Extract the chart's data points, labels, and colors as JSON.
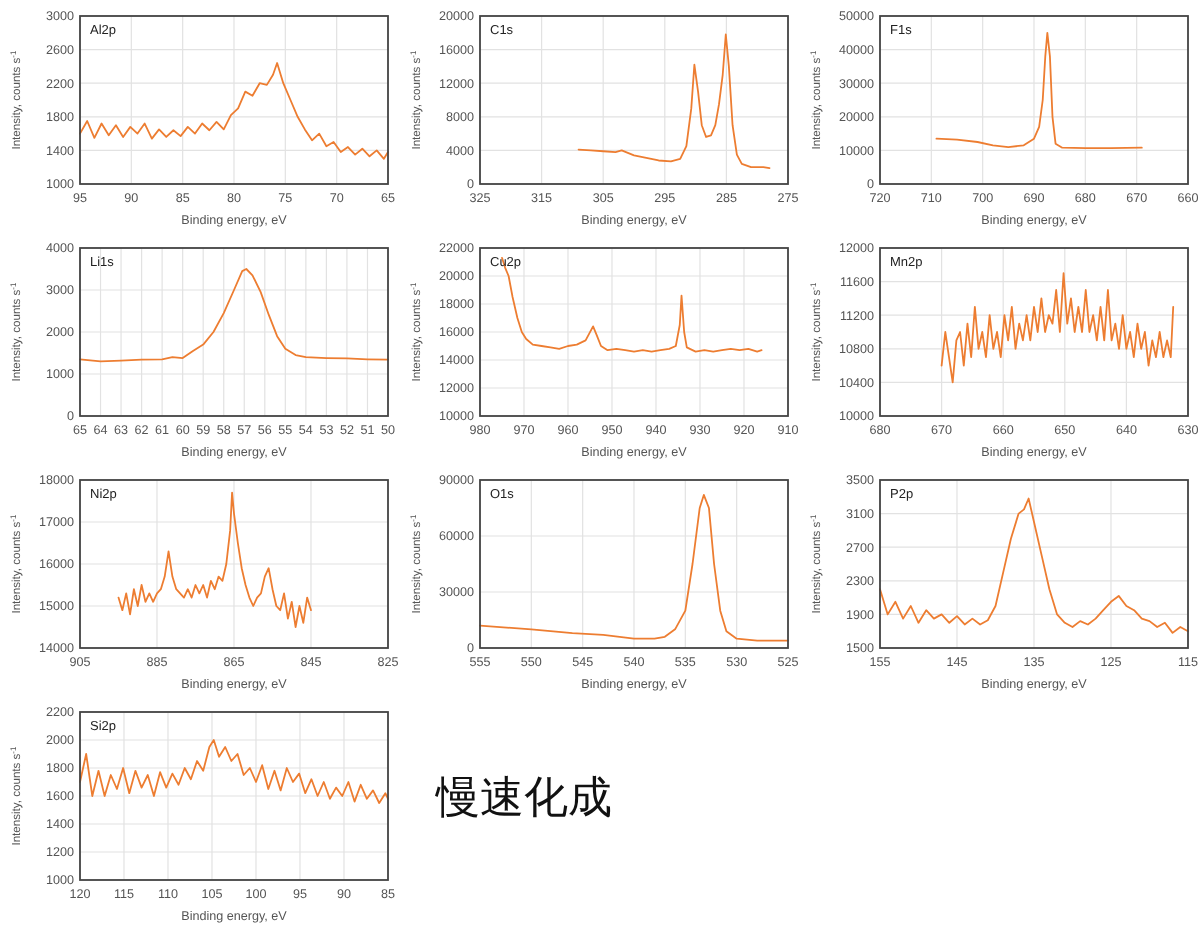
{
  "chart_data": [
    {
      "type": "line",
      "title": "Al2p",
      "xlabel": "Binding energy, eV",
      "ylabel": "Intensity, counts s$^{-1}$",
      "xlim": [
        95,
        65
      ],
      "xticks": [
        95,
        90,
        85,
        80,
        75,
        70,
        65
      ],
      "ylim": [
        1000,
        3000
      ],
      "yticks": [
        1000,
        1400,
        1800,
        2200,
        2600,
        3000
      ],
      "grid": true,
      "line_style": "solid",
      "marker": "none",
      "series": [
        {
          "color": "#ed7d31",
          "x": [
            95,
            94.3,
            93.6,
            92.9,
            92.2,
            91.5,
            90.8,
            90.1,
            89.4,
            88.7,
            88,
            87.3,
            86.6,
            85.9,
            85.2,
            84.5,
            83.8,
            83.1,
            82.4,
            81.7,
            81,
            80.3,
            79.6,
            78.9,
            78.2,
            77.5,
            76.8,
            76.2,
            75.8,
            75.2,
            74.5,
            73.8,
            73.1,
            72.4,
            71.7,
            71,
            70.3,
            69.6,
            68.9,
            68.2,
            67.5,
            66.8,
            66.1,
            65.4,
            65
          ],
          "values": [
            1600,
            1750,
            1550,
            1720,
            1580,
            1700,
            1560,
            1680,
            1600,
            1720,
            1540,
            1650,
            1560,
            1640,
            1570,
            1680,
            1600,
            1720,
            1640,
            1740,
            1650,
            1820,
            1900,
            2100,
            2050,
            2200,
            2180,
            2300,
            2440,
            2200,
            2000,
            1800,
            1650,
            1520,
            1600,
            1450,
            1500,
            1380,
            1440,
            1350,
            1420,
            1330,
            1400,
            1300,
            1380
          ]
        }
      ]
    },
    {
      "type": "line",
      "title": "C1s",
      "xlabel": "Binding energy, eV",
      "ylabel": "Intensity, counts s$^{-1}$",
      "xlim": [
        325,
        275
      ],
      "xticks": [
        325,
        315,
        305,
        295,
        285,
        275
      ],
      "ylim": [
        0,
        20000
      ],
      "yticks": [
        0,
        4000,
        8000,
        12000,
        16000,
        20000
      ],
      "grid": true,
      "line_style": "solid",
      "marker": "none",
      "series": [
        {
          "color": "#ed7d31",
          "x": [
            309,
            307,
            305,
            303,
            302,
            300,
            298,
            296,
            294,
            292.5,
            291.5,
            290.7,
            290.2,
            289.6,
            289,
            288.3,
            287.5,
            286.8,
            286.2,
            285.6,
            285.1,
            284.6,
            284,
            283.3,
            282.5,
            281,
            279,
            278
          ],
          "values": [
            4100,
            4000,
            3900,
            3800,
            4000,
            3400,
            3100,
            2800,
            2700,
            3000,
            4500,
            9000,
            14200,
            11000,
            7000,
            5600,
            5800,
            7000,
            9500,
            13000,
            17800,
            14000,
            7000,
            3500,
            2400,
            2000,
            2000,
            1900
          ]
        }
      ]
    },
    {
      "type": "line",
      "title": "F1s",
      "xlabel": "Binding energy, eV",
      "ylabel": "Intensity, counts s$^{-1}$",
      "xlim": [
        720,
        660
      ],
      "xticks": [
        720,
        710,
        700,
        690,
        680,
        670,
        660
      ],
      "ylim": [
        0,
        50000
      ],
      "yticks": [
        0,
        10000,
        20000,
        30000,
        40000,
        50000
      ],
      "grid": true,
      "line_style": "solid",
      "marker": "none",
      "series": [
        {
          "color": "#ed7d31",
          "x": [
            709,
            705,
            701,
            698,
            695,
            692,
            690,
            689,
            688.3,
            687.8,
            687.4,
            686.9,
            686.4,
            685.8,
            684.5,
            680,
            675,
            669
          ],
          "values": [
            13500,
            13200,
            12500,
            11500,
            11000,
            11500,
            13500,
            17000,
            25000,
            38000,
            45000,
            38000,
            20000,
            12000,
            10800,
            10700,
            10700,
            10800
          ]
        }
      ]
    },
    {
      "type": "line",
      "title": "Li1s",
      "xlabel": "Binding energy, eV",
      "ylabel": "Intensity, counts s$^{-1}$",
      "xlim": [
        65,
        50
      ],
      "xticks": [
        65,
        64,
        63,
        62,
        61,
        60,
        59,
        58,
        57,
        56,
        55,
        54,
        53,
        52,
        51,
        50
      ],
      "ylim": [
        0,
        4000
      ],
      "yticks": [
        0,
        1000,
        2000,
        3000,
        4000
      ],
      "grid": true,
      "line_style": "solid",
      "marker": "none",
      "series": [
        {
          "color": "#ed7d31",
          "x": [
            65,
            64,
            63,
            62,
            61,
            60.5,
            60,
            59.5,
            59,
            58.5,
            58,
            57.5,
            57.1,
            56.9,
            56.6,
            56.2,
            55.8,
            55.4,
            55,
            54.5,
            54,
            53,
            52,
            51,
            50
          ],
          "values": [
            1350,
            1300,
            1320,
            1340,
            1350,
            1400,
            1380,
            1550,
            1700,
            2000,
            2450,
            3000,
            3450,
            3500,
            3350,
            2950,
            2400,
            1900,
            1600,
            1450,
            1400,
            1380,
            1370,
            1350,
            1340
          ]
        }
      ]
    },
    {
      "type": "line",
      "title": "Cu2p",
      "xlabel": "Binding energy, eV",
      "ylabel": "Intensity, counts s$^{-1}$",
      "xlim": [
        980,
        910
      ],
      "xticks": [
        980,
        970,
        960,
        950,
        940,
        930,
        920,
        910
      ],
      "ylim": [
        10000,
        22000
      ],
      "yticks": [
        10000,
        12000,
        14000,
        16000,
        18000,
        20000,
        22000
      ],
      "grid": true,
      "line_style": "solid",
      "marker": "none",
      "series": [
        {
          "color": "#ed7d31",
          "x": [
            975,
            974.3,
            973.5,
            972.6,
            971.5,
            970.5,
            969.5,
            968,
            966,
            964,
            962,
            960,
            958,
            956,
            954.3,
            953.5,
            952.5,
            951,
            949,
            947,
            945,
            943,
            941,
            939,
            937,
            935.5,
            934.6,
            934.2,
            933.6,
            933,
            931,
            929,
            927,
            925,
            923,
            921,
            919,
            917,
            916
          ],
          "values": [
            21300,
            20600,
            20000,
            18500,
            17000,
            16000,
            15500,
            15100,
            15000,
            14900,
            14800,
            15000,
            15100,
            15400,
            16400,
            15800,
            15000,
            14700,
            14800,
            14700,
            14600,
            14700,
            14600,
            14700,
            14800,
            15000,
            16500,
            18600,
            16000,
            14900,
            14600,
            14700,
            14600,
            14700,
            14800,
            14700,
            14800,
            14600,
            14700
          ]
        }
      ]
    },
    {
      "type": "line",
      "title": "Mn2p",
      "xlabel": "Binding energy, eV",
      "ylabel": "Intensity, counts s$^{-1}$",
      "xlim": [
        680,
        630
      ],
      "xticks": [
        680,
        670,
        660,
        650,
        640,
        630
      ],
      "ylim": [
        10000,
        12000
      ],
      "yticks": [
        10000,
        10400,
        10800,
        11200,
        11600,
        12000
      ],
      "grid": true,
      "line_style": "solid",
      "marker": "none",
      "series": [
        {
          "color": "#ed7d31",
          "x": [
            670,
            669.4,
            668.8,
            668.2,
            667.6,
            667,
            666.4,
            665.8,
            665.2,
            664.6,
            664,
            663.4,
            662.8,
            662.2,
            661.6,
            661,
            660.4,
            659.8,
            659.2,
            658.6,
            658,
            657.4,
            656.8,
            656.2,
            655.6,
            655,
            654.4,
            653.8,
            653.2,
            652.6,
            652,
            651.4,
            650.8,
            650.2,
            649.6,
            649,
            648.4,
            647.8,
            647.2,
            646.6,
            646,
            645.4,
            644.8,
            644.2,
            643.6,
            643,
            642.4,
            641.8,
            641.2,
            640.6,
            640,
            639.4,
            638.8,
            638.2,
            637.6,
            637,
            636.4,
            635.8,
            635.2,
            634.6,
            634,
            633.4,
            632.8,
            632.4
          ],
          "values": [
            10600,
            11000,
            10700,
            10400,
            10900,
            11000,
            10600,
            11100,
            10700,
            11300,
            10800,
            11000,
            10700,
            11200,
            10800,
            11000,
            10700,
            11200,
            10900,
            11300,
            10800,
            11100,
            10900,
            11200,
            10900,
            11300,
            11000,
            11400,
            11000,
            11200,
            11100,
            11500,
            11000,
            11700,
            11100,
            11400,
            11000,
            11300,
            11000,
            11500,
            11000,
            11200,
            10900,
            11300,
            10900,
            11500,
            10900,
            11100,
            10800,
            11200,
            10800,
            11000,
            10700,
            11100,
            10800,
            11000,
            10600,
            10900,
            10700,
            11000,
            10700,
            10900,
            10700,
            11300
          ]
        }
      ]
    },
    {
      "type": "line",
      "title": "Ni2p",
      "xlabel": "Binding energy, eV",
      "ylabel": "Intensity, counts s$^{-1}$",
      "xlim": [
        905,
        825
      ],
      "xticks": [
        905,
        885,
        865,
        845,
        825
      ],
      "ylim": [
        14000,
        18000
      ],
      "yticks": [
        14000,
        15000,
        16000,
        17000,
        18000
      ],
      "grid": true,
      "line_style": "solid",
      "marker": "none",
      "series": [
        {
          "color": "#ed7d31",
          "x": [
            895,
            894,
            893,
            892,
            891,
            890,
            889,
            888,
            887,
            886,
            885,
            884,
            883,
            882,
            881,
            880,
            879,
            878,
            877,
            876,
            875,
            874,
            873,
            872,
            871,
            870,
            869,
            868,
            867,
            866,
            865.5,
            865,
            864,
            863,
            862,
            861,
            860,
            859,
            858,
            857,
            856,
            855,
            854,
            853,
            852,
            851,
            850,
            849,
            848,
            847,
            846,
            845
          ],
          "values": [
            15200,
            14900,
            15300,
            14800,
            15400,
            15000,
            15500,
            15100,
            15300,
            15100,
            15300,
            15400,
            15700,
            16300,
            15700,
            15400,
            15300,
            15200,
            15400,
            15200,
            15500,
            15300,
            15500,
            15200,
            15600,
            15400,
            15700,
            15600,
            16000,
            16800,
            17700,
            17200,
            16500,
            15900,
            15500,
            15200,
            15000,
            15200,
            15300,
            15700,
            15900,
            15400,
            15000,
            14900,
            15300,
            14700,
            15100,
            14500,
            15000,
            14600,
            15200,
            14900
          ]
        }
      ]
    },
    {
      "type": "line",
      "title": "O1s",
      "xlabel": "Binding energy, eV",
      "ylabel": "Intensity, counts s$^{-1}$",
      "xlim": [
        555,
        525
      ],
      "xticks": [
        555,
        550,
        545,
        540,
        535,
        530,
        525
      ],
      "ylim": [
        0,
        90000
      ],
      "yticks": [
        0,
        30000,
        60000,
        90000
      ],
      "grid": true,
      "line_style": "solid",
      "marker": "none",
      "series": [
        {
          "color": "#ed7d31",
          "x": [
            555,
            550,
            546,
            543,
            540,
            538,
            537,
            536,
            535,
            534.3,
            533.6,
            533.2,
            532.7,
            532.2,
            531.6,
            531,
            530,
            528,
            525
          ],
          "values": [
            12000,
            10000,
            8000,
            7000,
            5000,
            5000,
            6000,
            10000,
            20000,
            45000,
            75000,
            82000,
            75000,
            45000,
            20000,
            9000,
            5000,
            4000,
            4000
          ]
        }
      ]
    },
    {
      "type": "line",
      "title": "P2p",
      "xlabel": "Binding energy, eV",
      "ylabel": "Intensity, counts s$^{-1}$",
      "xlim": [
        155,
        115
      ],
      "xticks": [
        155,
        145,
        135,
        125,
        115
      ],
      "ylim": [
        1500,
        3500
      ],
      "yticks": [
        1500,
        1900,
        2300,
        2700,
        3100,
        3500
      ],
      "grid": true,
      "line_style": "solid",
      "marker": "none",
      "series": [
        {
          "color": "#ed7d31",
          "x": [
            155,
            154,
            153,
            152,
            151,
            150,
            149,
            148,
            147,
            146,
            145,
            144,
            143,
            142,
            141,
            140,
            139,
            138,
            137,
            136.3,
            135.7,
            135,
            134,
            133,
            132,
            131,
            130,
            129,
            128,
            127,
            126,
            125,
            124,
            123,
            122,
            121,
            120,
            119,
            118,
            117,
            116,
            115
          ],
          "values": [
            2200,
            1900,
            2050,
            1850,
            2000,
            1800,
            1950,
            1850,
            1900,
            1800,
            1880,
            1780,
            1850,
            1780,
            1830,
            2000,
            2400,
            2800,
            3100,
            3150,
            3280,
            3000,
            2600,
            2200,
            1900,
            1800,
            1750,
            1820,
            1780,
            1850,
            1950,
            2050,
            2120,
            2000,
            1950,
            1850,
            1820,
            1750,
            1800,
            1680,
            1750,
            1700
          ]
        }
      ]
    },
    {
      "type": "line",
      "title": "Si2p",
      "xlabel": "Binding energy, eV",
      "ylabel": "Intensity, counts s$^{-1}$",
      "xlim": [
        120,
        85
      ],
      "xticks": [
        120,
        115,
        110,
        105,
        100,
        95,
        90,
        85
      ],
      "ylim": [
        1000,
        2200
      ],
      "yticks": [
        1000,
        1200,
        1400,
        1600,
        1800,
        2000,
        2200
      ],
      "grid": true,
      "line_style": "solid",
      "marker": "none",
      "annotations": [
        "慢速化成"
      ],
      "series": [
        {
          "color": "#ed7d31",
          "x": [
            120,
            119.3,
            118.6,
            117.9,
            117.2,
            116.5,
            115.8,
            115.1,
            114.4,
            113.7,
            113,
            112.3,
            111.6,
            110.9,
            110.2,
            109.5,
            108.8,
            108.1,
            107.4,
            106.7,
            106,
            105.3,
            104.8,
            104.2,
            103.5,
            102.8,
            102.1,
            101.4,
            100.7,
            100,
            99.3,
            98.6,
            97.9,
            97.2,
            96.5,
            95.8,
            95.1,
            94.4,
            93.7,
            93,
            92.3,
            91.6,
            90.9,
            90.2,
            89.5,
            88.8,
            88.1,
            87.4,
            86.7,
            86,
            85.3,
            85
          ],
          "values": [
            1700,
            1900,
            1600,
            1780,
            1600,
            1750,
            1650,
            1800,
            1620,
            1780,
            1660,
            1750,
            1600,
            1770,
            1660,
            1760,
            1680,
            1800,
            1720,
            1850,
            1780,
            1950,
            2000,
            1880,
            1950,
            1850,
            1900,
            1750,
            1800,
            1700,
            1820,
            1650,
            1780,
            1640,
            1800,
            1700,
            1760,
            1620,
            1720,
            1600,
            1700,
            1580,
            1660,
            1600,
            1700,
            1560,
            1680,
            1580,
            1640,
            1550,
            1620,
            1580
          ]
        }
      ]
    }
  ]
}
